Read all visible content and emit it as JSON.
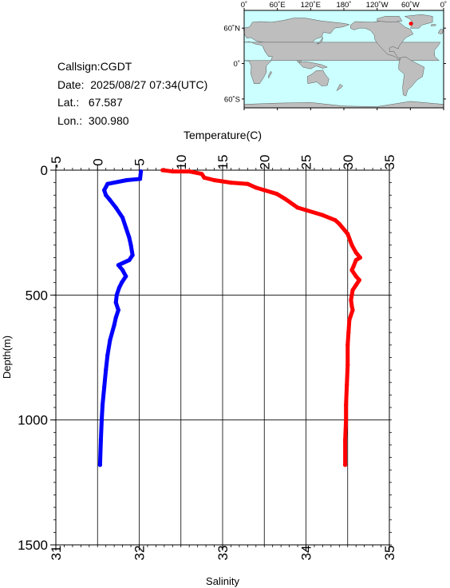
{
  "station": {
    "callsign": "Callsign:CGDT",
    "date": "Date:  2025/08/27 07:34(UTC)",
    "lat": "Lat.:   67.587",
    "lon": "Lon.:  300.980"
  },
  "map": {
    "lon_ticks": [
      "0˚",
      "60˚E",
      "120˚E",
      "180˚",
      "120˚W",
      "60˚W",
      "0˚"
    ],
    "lat_ticks": [
      "60˚N",
      "0˚",
      "60˚S"
    ],
    "colors": {
      "ocean": "#ccffff",
      "land": "#bebebe"
    },
    "marker": {
      "lon": 300.98,
      "lat": 67.587,
      "color": "#ff0000"
    }
  },
  "chart_data": {
    "type": "scatter",
    "ylabel": "Depth(m)",
    "y_ticks": [
      "0",
      "500",
      "1000",
      "1500"
    ],
    "ylim": [
      0,
      1500
    ],
    "y_inverted": true,
    "grid": true,
    "top_axis": {
      "label": "Temperature(C)",
      "ticks": [
        "-5",
        "0",
        "5",
        "10",
        "15",
        "20",
        "25",
        "30",
        "35"
      ],
      "range": [
        -5,
        35
      ]
    },
    "bottom_axis": {
      "label": "Salinity",
      "ticks": [
        "31",
        "32",
        "33",
        "34",
        "35"
      ],
      "range": [
        31,
        35
      ]
    },
    "series": [
      {
        "color": "#ff0000",
        "axis": "temperature",
        "points": [
          [
            7.8,
            0
          ],
          [
            9,
            5
          ],
          [
            11,
            5
          ],
          [
            12.5,
            15
          ],
          [
            12.8,
            30
          ],
          [
            14,
            40
          ],
          [
            16,
            50
          ],
          [
            18,
            55
          ],
          [
            19,
            70
          ],
          [
            20,
            80
          ],
          [
            21.5,
            95
          ],
          [
            22.5,
            115
          ],
          [
            24,
            150
          ],
          [
            25,
            160
          ],
          [
            27,
            180
          ],
          [
            28.5,
            200
          ],
          [
            29,
            215
          ],
          [
            30,
            255
          ],
          [
            30.5,
            300
          ],
          [
            31,
            330
          ],
          [
            31.5,
            350
          ],
          [
            31,
            360
          ],
          [
            30.7,
            385
          ],
          [
            30.5,
            400
          ],
          [
            31,
            425
          ],
          [
            31.4,
            440
          ],
          [
            31,
            460
          ],
          [
            30.6,
            480
          ],
          [
            30.4,
            520
          ],
          [
            30.5,
            545
          ],
          [
            30.6,
            560
          ],
          [
            30.2,
            600
          ],
          [
            30.1,
            650
          ],
          [
            30,
            700
          ],
          [
            30,
            780
          ],
          [
            29.9,
            860
          ],
          [
            29.8,
            940
          ],
          [
            29.8,
            1000
          ],
          [
            29.7,
            1080
          ],
          [
            29.7,
            1180
          ]
        ]
      },
      {
        "color": "#0000ff",
        "axis": "salinity",
        "points": [
          [
            32.02,
            5
          ],
          [
            32.01,
            35
          ],
          [
            31.85,
            40
          ],
          [
            31.62,
            55
          ],
          [
            31.58,
            80
          ],
          [
            31.6,
            100
          ],
          [
            31.65,
            120
          ],
          [
            31.72,
            150
          ],
          [
            31.8,
            190
          ],
          [
            31.84,
            230
          ],
          [
            31.88,
            270
          ],
          [
            31.9,
            300
          ],
          [
            31.92,
            340
          ],
          [
            31.88,
            360
          ],
          [
            31.75,
            380
          ],
          [
            31.8,
            400
          ],
          [
            31.84,
            425
          ],
          [
            31.79,
            450
          ],
          [
            31.76,
            470
          ],
          [
            31.73,
            500
          ],
          [
            31.72,
            530
          ],
          [
            31.75,
            560
          ],
          [
            31.72,
            590
          ],
          [
            31.7,
            620
          ],
          [
            31.65,
            680
          ],
          [
            31.62,
            740
          ],
          [
            31.6,
            800
          ],
          [
            31.58,
            870
          ],
          [
            31.56,
            940
          ],
          [
            31.55,
            1000
          ],
          [
            31.54,
            1080
          ],
          [
            31.53,
            1180
          ]
        ]
      }
    ]
  }
}
